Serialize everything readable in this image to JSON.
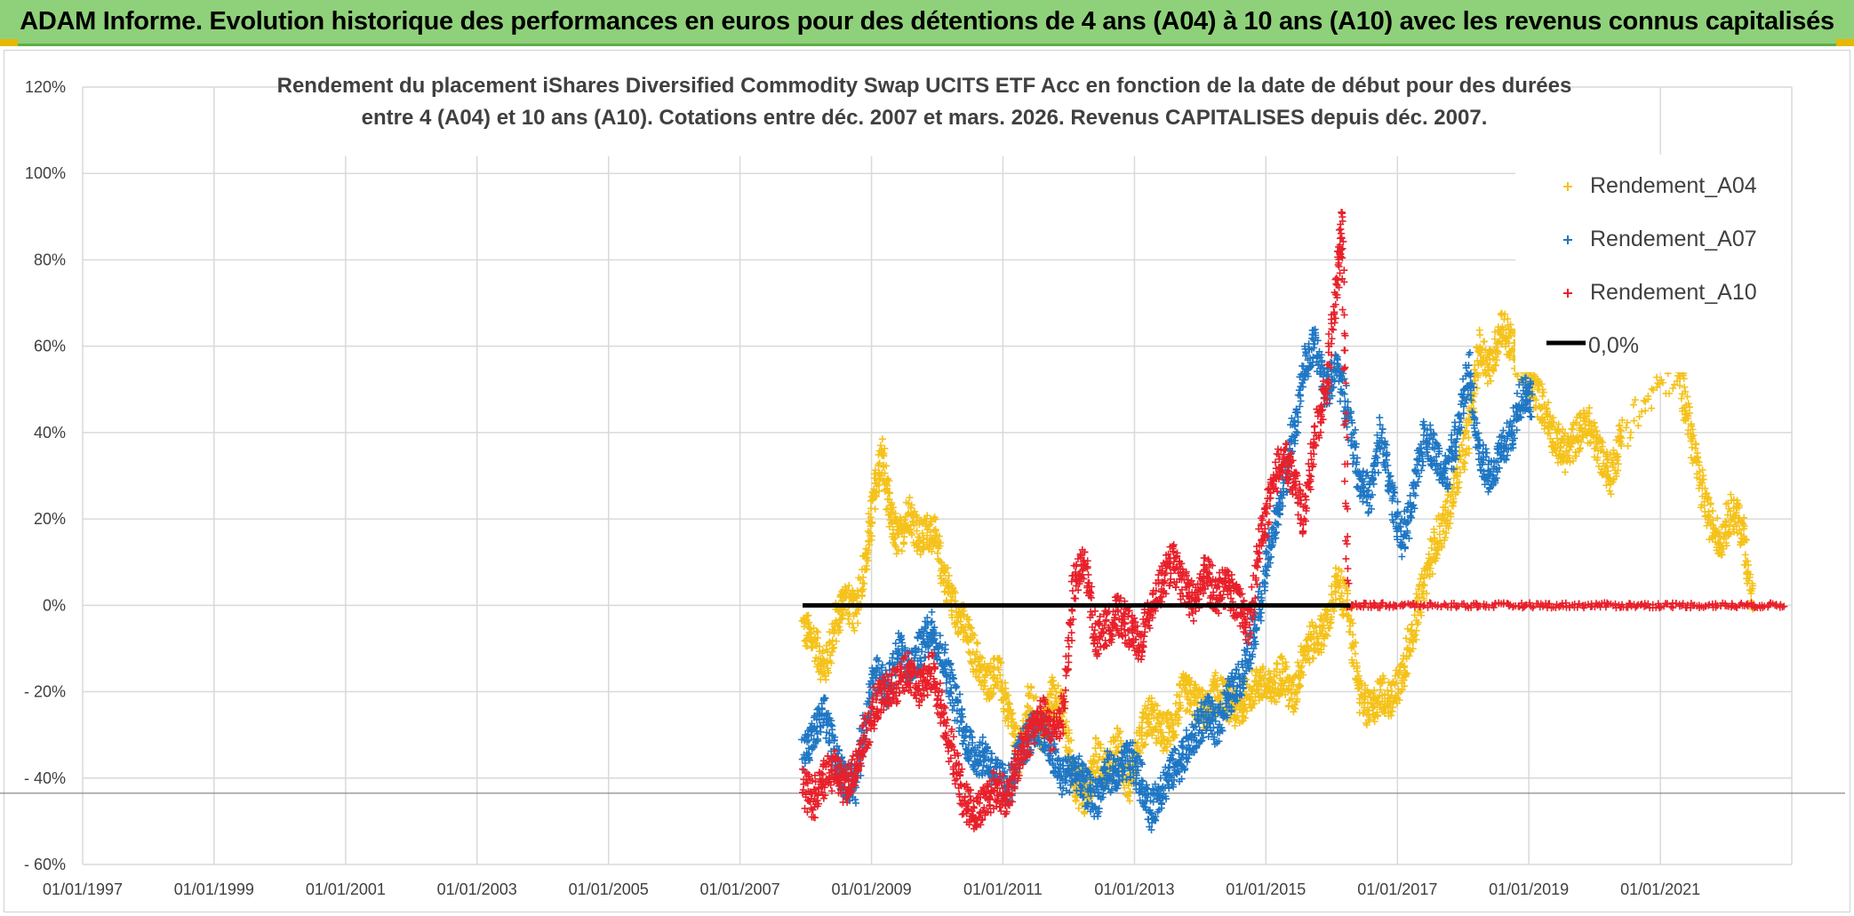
{
  "banner": {
    "title": "ADAM Informe. Evolution historique des performances en euros pour des détentions de 4 ans (A04) à 10 ans (A10) avec les revenus connus capitalisés"
  },
  "colors": {
    "banner_bg": "#8fd17a",
    "a04": "#f5c21b",
    "a07": "#1f77c4",
    "a10": "#e8202a",
    "zero": "#000000"
  },
  "chart_data": {
    "type": "scatter",
    "title_lines": [
      "Rendement du placement iShares Diversified Commodity Swap UCITS ETF Acc en fonction de la date de début pour des durées",
      "entre 4 (A04) et 10 ans (A10). Cotations entre déc. 2007 et mars. 2026. Revenus CAPITALISES depuis déc. 2007."
    ],
    "x_range": [
      "1997-01-01",
      "2023-01-01"
    ],
    "x_ticks": [
      "01/01/1997",
      "01/01/1999",
      "01/01/2001",
      "01/01/2003",
      "01/01/2005",
      "01/01/2007",
      "01/01/2009",
      "01/01/2011",
      "01/01/2013",
      "01/01/2015",
      "01/01/2017",
      "01/01/2019",
      "01/01/2021"
    ],
    "ylim": [
      -60,
      120
    ],
    "y_ticks": [
      "- 60%",
      "- 40%",
      "- 20%",
      "0%",
      "20%",
      "40%",
      "60%",
      "80%",
      "100%",
      "120%"
    ],
    "y_tick_values": [
      -60,
      -40,
      -20,
      0,
      20,
      40,
      60,
      80,
      100,
      120
    ],
    "grid": true,
    "legend_position": "top-right",
    "legend": [
      {
        "label": "Rendement_A04",
        "marker": "+"
      },
      {
        "label": "Rendement_A07",
        "marker": "+"
      },
      {
        "label": "Rendement_A10",
        "marker": "+"
      },
      {
        "label": "0,0%",
        "marker": "line"
      }
    ],
    "series": [
      {
        "name": "Rendement_A04",
        "points": [
          [
            "2007-12-15",
            -5
          ],
          [
            "2008-02-15",
            -8
          ],
          [
            "2008-04-15",
            -15
          ],
          [
            "2008-06-15",
            -5
          ],
          [
            "2008-08-01",
            2
          ],
          [
            "2008-10-01",
            -2
          ],
          [
            "2008-12-01",
            10
          ],
          [
            "2009-01-15",
            25
          ],
          [
            "2009-03-01",
            35
          ],
          [
            "2009-04-15",
            20
          ],
          [
            "2009-06-01",
            15
          ],
          [
            "2009-08-01",
            22
          ],
          [
            "2009-10-01",
            15
          ],
          [
            "2009-12-01",
            18
          ],
          [
            "2010-02-01",
            8
          ],
          [
            "2010-04-01",
            0
          ],
          [
            "2010-06-01",
            -5
          ],
          [
            "2010-08-01",
            -12
          ],
          [
            "2010-10-01",
            -18
          ],
          [
            "2010-12-01",
            -15
          ],
          [
            "2011-02-01",
            -25
          ],
          [
            "2011-04-01",
            -35
          ],
          [
            "2011-06-01",
            -22
          ],
          [
            "2011-08-01",
            -30
          ],
          [
            "2011-10-01",
            -20
          ],
          [
            "2011-12-01",
            -25
          ],
          [
            "2012-02-01",
            -40
          ],
          [
            "2012-04-01",
            -45
          ],
          [
            "2012-06-01",
            -35
          ],
          [
            "2012-08-01",
            -38
          ],
          [
            "2012-10-01",
            -32
          ],
          [
            "2012-12-01",
            -42
          ],
          [
            "2013-02-01",
            -30
          ],
          [
            "2013-04-01",
            -25
          ],
          [
            "2013-06-01",
            -30
          ],
          [
            "2013-08-01",
            -28
          ],
          [
            "2013-10-01",
            -20
          ],
          [
            "2013-12-01",
            -22
          ],
          [
            "2014-02-01",
            -25
          ],
          [
            "2014-04-01",
            -20
          ],
          [
            "2014-06-01",
            -22
          ],
          [
            "2014-08-01",
            -25
          ],
          [
            "2014-10-01",
            -20
          ],
          [
            "2014-12-01",
            -18
          ],
          [
            "2015-02-01",
            -20
          ],
          [
            "2015-04-01",
            -15
          ],
          [
            "2015-06-01",
            -22
          ],
          [
            "2015-08-01",
            -10
          ],
          [
            "2015-10-01",
            -8
          ],
          [
            "2015-12-01",
            -5
          ],
          [
            "2016-02-01",
            5
          ],
          [
            "2016-04-01",
            0
          ],
          [
            "2016-06-01",
            -20
          ],
          [
            "2016-08-01",
            -25
          ],
          [
            "2016-10-01",
            -20
          ],
          [
            "2016-12-01",
            -22
          ],
          [
            "2017-02-01",
            -15
          ],
          [
            "2017-04-01",
            -5
          ],
          [
            "2017-06-01",
            5
          ],
          [
            "2017-08-01",
            15
          ],
          [
            "2017-10-01",
            20
          ],
          [
            "2017-12-01",
            30
          ],
          [
            "2018-02-01",
            40
          ],
          [
            "2018-04-01",
            60
          ],
          [
            "2018-06-01",
            55
          ],
          [
            "2018-08-01",
            65
          ],
          [
            "2018-10-01",
            60
          ],
          [
            "2018-12-01",
            55
          ],
          [
            "2019-02-01",
            50
          ],
          [
            "2019-04-01",
            45
          ],
          [
            "2019-06-01",
            38
          ],
          [
            "2019-08-01",
            35
          ],
          [
            "2019-10-01",
            40
          ],
          [
            "2019-12-01",
            42
          ],
          [
            "2020-02-01",
            35
          ],
          [
            "2020-04-01",
            30
          ],
          [
            "2020-06-01",
            40
          ],
          [
            "2021-04-01",
            55
          ],
          [
            "2021-06-01",
            45
          ],
          [
            "2021-08-01",
            30
          ],
          [
            "2021-10-01",
            20
          ],
          [
            "2021-12-01",
            15
          ],
          [
            "2022-02-01",
            22
          ],
          [
            "2022-04-01",
            18
          ],
          [
            "2022-06-01",
            0
          ]
        ]
      },
      {
        "name": "Rendement_A07",
        "points": [
          [
            "2007-12-15",
            -35
          ],
          [
            "2008-02-15",
            -30
          ],
          [
            "2008-04-15",
            -25
          ],
          [
            "2008-06-15",
            -35
          ],
          [
            "2008-08-01",
            -40
          ],
          [
            "2008-10-01",
            -42
          ],
          [
            "2008-12-01",
            -25
          ],
          [
            "2009-02-01",
            -15
          ],
          [
            "2009-04-01",
            -20
          ],
          [
            "2009-06-01",
            -10
          ],
          [
            "2009-08-01",
            -15
          ],
          [
            "2009-10-01",
            -10
          ],
          [
            "2009-12-01",
            -5
          ],
          [
            "2010-02-01",
            -12
          ],
          [
            "2010-04-01",
            -20
          ],
          [
            "2010-06-01",
            -30
          ],
          [
            "2010-08-01",
            -35
          ],
          [
            "2010-10-01",
            -35
          ],
          [
            "2010-12-01",
            -40
          ],
          [
            "2011-02-01",
            -42
          ],
          [
            "2011-04-01",
            -35
          ],
          [
            "2011-06-01",
            -30
          ],
          [
            "2011-08-01",
            -28
          ],
          [
            "2011-10-01",
            -35
          ],
          [
            "2011-12-01",
            -40
          ],
          [
            "2012-02-01",
            -38
          ],
          [
            "2012-04-01",
            -42
          ],
          [
            "2012-06-01",
            -45
          ],
          [
            "2012-08-01",
            -38
          ],
          [
            "2012-10-01",
            -40
          ],
          [
            "2012-12-01",
            -35
          ],
          [
            "2013-02-01",
            -40
          ],
          [
            "2013-04-01",
            -48
          ],
          [
            "2013-06-01",
            -42
          ],
          [
            "2013-08-01",
            -38
          ],
          [
            "2013-10-01",
            -35
          ],
          [
            "2013-12-01",
            -30
          ],
          [
            "2014-02-01",
            -25
          ],
          [
            "2014-04-01",
            -28
          ],
          [
            "2014-06-01",
            -22
          ],
          [
            "2014-08-01",
            -18
          ],
          [
            "2014-10-01",
            -10
          ],
          [
            "2014-12-01",
            0
          ],
          [
            "2015-02-01",
            15
          ],
          [
            "2015-04-01",
            25
          ],
          [
            "2015-06-01",
            40
          ],
          [
            "2015-08-01",
            55
          ],
          [
            "2015-10-01",
            60
          ],
          [
            "2015-12-01",
            50
          ],
          [
            "2016-02-01",
            55
          ],
          [
            "2016-04-01",
            45
          ],
          [
            "2016-06-01",
            30
          ],
          [
            "2016-08-01",
            25
          ],
          [
            "2016-10-01",
            40
          ],
          [
            "2016-12-01",
            25
          ],
          [
            "2017-02-01",
            15
          ],
          [
            "2017-04-01",
            25
          ],
          [
            "2017-06-01",
            40
          ],
          [
            "2017-08-01",
            35
          ],
          [
            "2017-10-01",
            30
          ],
          [
            "2017-12-01",
            40
          ],
          [
            "2018-02-01",
            55
          ],
          [
            "2018-04-01",
            35
          ],
          [
            "2018-06-01",
            30
          ],
          [
            "2018-08-01",
            35
          ],
          [
            "2018-10-01",
            40
          ],
          [
            "2018-12-01",
            50
          ],
          [
            "2019-01-15",
            48
          ]
        ]
      },
      {
        "name": "Rendement_A10",
        "points": [
          [
            "2007-12-15",
            -42
          ],
          [
            "2008-02-15",
            -45
          ],
          [
            "2008-04-15",
            -40
          ],
          [
            "2008-06-15",
            -38
          ],
          [
            "2008-08-01",
            -42
          ],
          [
            "2008-10-01",
            -38
          ],
          [
            "2008-12-01",
            -30
          ],
          [
            "2009-02-01",
            -22
          ],
          [
            "2009-04-01",
            -20
          ],
          [
            "2009-06-01",
            -18
          ],
          [
            "2009-08-01",
            -15
          ],
          [
            "2009-10-01",
            -20
          ],
          [
            "2009-12-01",
            -15
          ],
          [
            "2010-02-01",
            -25
          ],
          [
            "2010-04-01",
            -35
          ],
          [
            "2010-06-01",
            -45
          ],
          [
            "2010-08-01",
            -48
          ],
          [
            "2010-10-01",
            -45
          ],
          [
            "2010-12-01",
            -42
          ],
          [
            "2011-02-01",
            -45
          ],
          [
            "2011-04-01",
            -35
          ],
          [
            "2011-06-01",
            -30
          ],
          [
            "2011-08-01",
            -25
          ],
          [
            "2011-10-01",
            -30
          ],
          [
            "2011-12-01",
            -25
          ],
          [
            "2012-02-01",
            5
          ],
          [
            "2012-04-01",
            10
          ],
          [
            "2012-06-01",
            -8
          ],
          [
            "2012-08-01",
            -5
          ],
          [
            "2012-10-01",
            -2
          ],
          [
            "2012-12-01",
            -5
          ],
          [
            "2013-02-01",
            -10
          ],
          [
            "2013-04-01",
            0
          ],
          [
            "2013-06-01",
            5
          ],
          [
            "2013-08-01",
            10
          ],
          [
            "2013-10-01",
            5
          ],
          [
            "2013-12-01",
            0
          ],
          [
            "2014-02-01",
            8
          ],
          [
            "2014-04-01",
            2
          ],
          [
            "2014-06-01",
            5
          ],
          [
            "2014-08-01",
            0
          ],
          [
            "2014-10-01",
            -5
          ],
          [
            "2014-12-01",
            15
          ],
          [
            "2015-02-01",
            25
          ],
          [
            "2015-04-01",
            35
          ],
          [
            "2015-06-01",
            30
          ],
          [
            "2015-08-01",
            20
          ],
          [
            "2015-10-01",
            40
          ],
          [
            "2015-12-01",
            50
          ],
          [
            "2016-02-01",
            75
          ],
          [
            "2016-03-01",
            90
          ],
          [
            "2016-04-01",
            0
          ],
          [
            "2017-01-01",
            0
          ],
          [
            "2018-01-01",
            0
          ],
          [
            "2019-01-01",
            0
          ],
          [
            "2020-01-01",
            0
          ],
          [
            "2021-01-01",
            0
          ],
          [
            "2022-01-01",
            0
          ],
          [
            "2022-12-01",
            0
          ]
        ]
      }
    ],
    "zero_line": {
      "label": "0,0%",
      "from": "2007-12-15",
      "to": "2016-04-15",
      "value": 0
    }
  }
}
